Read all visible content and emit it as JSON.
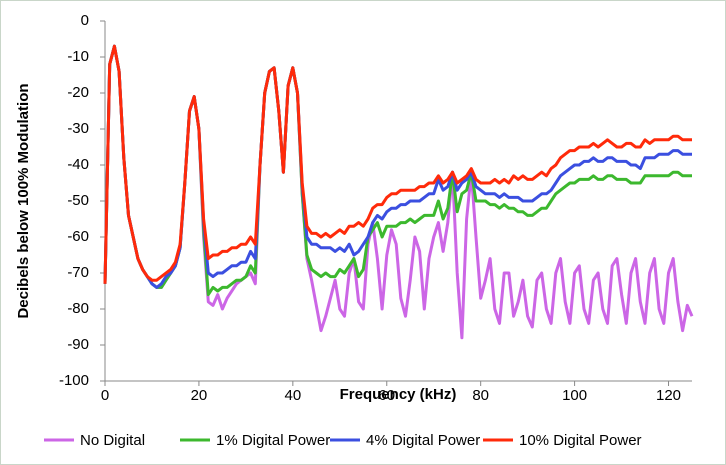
{
  "chart_data": {
    "type": "line",
    "xlabel": "Frequency (kHz)",
    "ylabel": "Decibels below 100% Modulation",
    "x": [
      0,
      1,
      2,
      3,
      4,
      5,
      6,
      7,
      8,
      9,
      10,
      11,
      12,
      13,
      14,
      15,
      16,
      17,
      18,
      19,
      20,
      21,
      22,
      23,
      24,
      25,
      26,
      27,
      28,
      29,
      30,
      31,
      32,
      33,
      34,
      35,
      36,
      37,
      38,
      39,
      40,
      41,
      42,
      43,
      44,
      45,
      46,
      47,
      48,
      49,
      50,
      51,
      52,
      53,
      54,
      55,
      56,
      57,
      58,
      59,
      60,
      61,
      62,
      63,
      64,
      65,
      66,
      67,
      68,
      69,
      70,
      71,
      72,
      73,
      74,
      75,
      76,
      77,
      78,
      79,
      80,
      81,
      82,
      83,
      84,
      85,
      86,
      87,
      88,
      89,
      90,
      91,
      92,
      93,
      94,
      95,
      96,
      97,
      98,
      99,
      100,
      101,
      102,
      103,
      104,
      105,
      106,
      107,
      108,
      109,
      110,
      111,
      112,
      113,
      114,
      115,
      116,
      117,
      118,
      119,
      120,
      121,
      122,
      123,
      124,
      125
    ],
    "series": [
      {
        "name": "No Digital",
        "color": "#cc66e6",
        "values": [
          -73,
          -12,
          -7,
          -14,
          -38,
          -54,
          -60,
          -66,
          -69,
          -71,
          -73,
          -74,
          -74,
          -72,
          -70,
          -68,
          -63,
          -45,
          -25,
          -21,
          -30,
          -60,
          -78,
          -79,
          -76,
          -80,
          -77,
          -75,
          -73,
          -72,
          -71,
          -70,
          -73,
          -40,
          -20,
          -14,
          -13,
          -25,
          -42,
          -18,
          -13,
          -20,
          -48,
          -66,
          -72,
          -79,
          -86,
          -82,
          -77,
          -72,
          -80,
          -82,
          -70,
          -66,
          -78,
          -80,
          -62,
          -56,
          -66,
          -80,
          -65,
          -58,
          -62,
          -77,
          -82,
          -72,
          -60,
          -64,
          -80,
          -66,
          -60,
          -56,
          -64,
          -56,
          -42,
          -70,
          -88,
          -55,
          -42,
          -60,
          -77,
          -72,
          -66,
          -80,
          -84,
          -70,
          -70,
          -82,
          -78,
          -72,
          -82,
          -85,
          -72,
          -70,
          -80,
          -84,
          -70,
          -66,
          -78,
          -84,
          -70,
          -68,
          -80,
          -84,
          -72,
          -70,
          -80,
          -84,
          -68,
          -66,
          -76,
          -84,
          -70,
          -66,
          -78,
          -84,
          -70,
          -66,
          -80,
          -84,
          -70,
          -66,
          -78,
          -86,
          -79,
          -82
        ]
      },
      {
        "name": "1% Digital Power",
        "color": "#3cb82e",
        "values": [
          -73,
          -12,
          -7,
          -14,
          -38,
          -54,
          -60,
          -66,
          -69,
          -71,
          -73,
          -74,
          -74,
          -72,
          -70,
          -68,
          -63,
          -45,
          -25,
          -21,
          -30,
          -58,
          -76,
          -74,
          -75,
          -74,
          -74,
          -73,
          -72,
          -72,
          -71,
          -68,
          -70,
          -40,
          -20,
          -14,
          -13,
          -25,
          -42,
          -18,
          -13,
          -20,
          -48,
          -65,
          -69,
          -70,
          -71,
          -70,
          -71,
          -71,
          -69,
          -70,
          -68,
          -66,
          -71,
          -69,
          -60,
          -58,
          -56,
          -60,
          -57,
          -57,
          -57,
          -56,
          -56,
          -55,
          -56,
          -55,
          -54,
          -54,
          -54,
          -50,
          -55,
          -52,
          -42,
          -53,
          -48,
          -47,
          -42,
          -50,
          -50,
          -50,
          -51,
          -51,
          -52,
          -51,
          -52,
          -52,
          -53,
          -53,
          -54,
          -54,
          -53,
          -52,
          -52,
          -50,
          -48,
          -47,
          -46,
          -45,
          -45,
          -44,
          -44,
          -44,
          -43,
          -44,
          -44,
          -43,
          -43,
          -44,
          -44,
          -44,
          -45,
          -45,
          -45,
          -43,
          -43,
          -43,
          -43,
          -43,
          -43,
          -42,
          -42,
          -43,
          -43,
          -43
        ]
      },
      {
        "name": "4% Digital Power",
        "color": "#3b4fe0",
        "values": [
          -73,
          -12,
          -7,
          -14,
          -38,
          -54,
          -60,
          -66,
          -69,
          -71,
          -73,
          -74,
          -73,
          -71,
          -70,
          -68,
          -63,
          -45,
          -25,
          -21,
          -30,
          -56,
          -70,
          -71,
          -70,
          -70,
          -69,
          -68,
          -68,
          -67,
          -67,
          -64,
          -66,
          -40,
          -20,
          -14,
          -13,
          -25,
          -42,
          -18,
          -13,
          -20,
          -46,
          -60,
          -62,
          -62,
          -63,
          -63,
          -63,
          -64,
          -63,
          -64,
          -62,
          -65,
          -64,
          -62,
          -60,
          -56,
          -54,
          -55,
          -53,
          -52,
          -52,
          -51,
          -51,
          -50,
          -50,
          -50,
          -49,
          -48,
          -48,
          -44,
          -47,
          -46,
          -42,
          -47,
          -45,
          -44,
          -42,
          -46,
          -47,
          -48,
          -48,
          -48,
          -49,
          -48,
          -49,
          -49,
          -49,
          -50,
          -50,
          -50,
          -49,
          -48,
          -48,
          -47,
          -45,
          -43,
          -42,
          -41,
          -40,
          -40,
          -39,
          -39,
          -38,
          -39,
          -39,
          -38,
          -38,
          -39,
          -39,
          -39,
          -40,
          -40,
          -41,
          -38,
          -38,
          -38,
          -37,
          -37,
          -37,
          -36,
          -36,
          -37,
          -37,
          -37
        ]
      },
      {
        "name": "10% Digital Power",
        "color": "#ff2a0a",
        "values": [
          -73,
          -12,
          -7,
          -14,
          -38,
          -54,
          -60,
          -66,
          -69,
          -71,
          -72,
          -72,
          -71,
          -70,
          -69,
          -67,
          -62,
          -45,
          -25,
          -21,
          -30,
          -55,
          -66,
          -65,
          -65,
          -64,
          -64,
          -63,
          -63,
          -62,
          -62,
          -60,
          -62,
          -40,
          -20,
          -14,
          -13,
          -25,
          -42,
          -18,
          -13,
          -20,
          -45,
          -57,
          -59,
          -59,
          -60,
          -59,
          -60,
          -59,
          -58,
          -59,
          -57,
          -57,
          -56,
          -57,
          -55,
          -52,
          -51,
          -51,
          -49,
          -48,
          -48,
          -47,
          -47,
          -47,
          -47,
          -46,
          -46,
          -45,
          -45,
          -43,
          -45,
          -44,
          -42,
          -45,
          -44,
          -43,
          -41,
          -44,
          -45,
          -45,
          -45,
          -44,
          -45,
          -44,
          -45,
          -43,
          -44,
          -43,
          -44,
          -44,
          -43,
          -42,
          -43,
          -41,
          -40,
          -38,
          -37,
          -36,
          -36,
          -35,
          -35,
          -35,
          -34,
          -35,
          -34,
          -33,
          -34,
          -35,
          -35,
          -34,
          -34,
          -35,
          -35,
          -33,
          -34,
          -33,
          -33,
          -33,
          -33,
          -32,
          -32,
          -33,
          -33,
          -33
        ]
      }
    ],
    "xlim": [
      0,
      125
    ],
    "xticks": [
      0,
      20,
      40,
      60,
      80,
      100,
      120
    ],
    "ylim": [
      -100,
      0
    ],
    "yticks": [
      -100,
      -90,
      -80,
      -70,
      -60,
      -50,
      -40,
      -30,
      -20,
      -10,
      0
    ],
    "grid": false,
    "legend": "bottom"
  }
}
